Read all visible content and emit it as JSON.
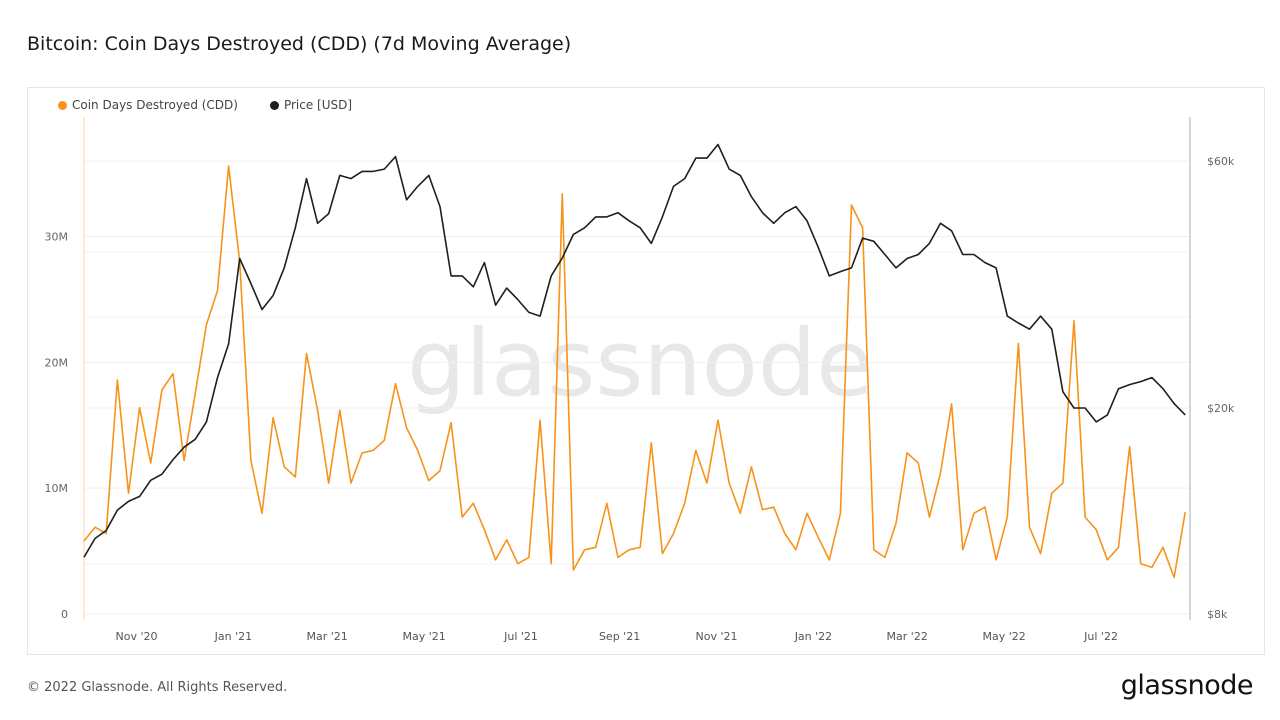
{
  "title": "Bitcoin: Coin Days Destroyed (CDD) (7d Moving Average)",
  "footer": "© 2022 Glassnode. All Rights Reserved.",
  "logo": "glassnode",
  "watermark": "glassnode",
  "chart_data": {
    "type": "line",
    "title": "Bitcoin: Coin Days Destroyed (CDD) (7d Moving Average)",
    "legend_placement": "top-left",
    "grid": true,
    "x": [
      "2020-10-04",
      "2020-10-11",
      "2020-10-18",
      "2020-10-25",
      "2020-11-01",
      "2020-11-08",
      "2020-11-15",
      "2020-11-22",
      "2020-11-29",
      "2020-12-06",
      "2020-12-13",
      "2020-12-20",
      "2020-12-27",
      "2021-01-03",
      "2021-01-10",
      "2021-01-17",
      "2021-01-24",
      "2021-01-31",
      "2021-02-07",
      "2021-02-14",
      "2021-02-21",
      "2021-02-28",
      "2021-03-07",
      "2021-03-14",
      "2021-03-21",
      "2021-03-28",
      "2021-04-04",
      "2021-04-11",
      "2021-04-18",
      "2021-04-25",
      "2021-05-02",
      "2021-05-09",
      "2021-05-16",
      "2021-05-23",
      "2021-05-30",
      "2021-06-06",
      "2021-06-13",
      "2021-06-20",
      "2021-06-27",
      "2021-07-04",
      "2021-07-11",
      "2021-07-18",
      "2021-07-25",
      "2021-08-01",
      "2021-08-08",
      "2021-08-15",
      "2021-08-22",
      "2021-08-29",
      "2021-09-05",
      "2021-09-12",
      "2021-09-19",
      "2021-09-26",
      "2021-10-03",
      "2021-10-10",
      "2021-10-17",
      "2021-10-24",
      "2021-10-31",
      "2021-11-07",
      "2021-11-14",
      "2021-11-21",
      "2021-11-28",
      "2021-12-05",
      "2021-12-12",
      "2021-12-19",
      "2021-12-26",
      "2022-01-02",
      "2022-01-09",
      "2022-01-16",
      "2022-01-23",
      "2022-01-30",
      "2022-02-06",
      "2022-02-13",
      "2022-02-20",
      "2022-02-27",
      "2022-03-06",
      "2022-03-13",
      "2022-03-20",
      "2022-03-27",
      "2022-04-03",
      "2022-04-10",
      "2022-04-17",
      "2022-04-24",
      "2022-05-01",
      "2022-05-08",
      "2022-05-15",
      "2022-05-22",
      "2022-05-29",
      "2022-06-05",
      "2022-06-12",
      "2022-06-19",
      "2022-06-26",
      "2022-07-03",
      "2022-07-10",
      "2022-07-17",
      "2022-07-24",
      "2022-07-31",
      "2022-08-07",
      "2022-08-14",
      "2022-08-21",
      "2022-08-28"
    ],
    "x_ticks": [
      "Nov '20",
      "Jan '21",
      "Mar '21",
      "May '21",
      "Jul '21",
      "Sep '21",
      "Nov '21",
      "Jan '22",
      "Mar '22",
      "May '22",
      "Jul '22"
    ],
    "x_tick_dates": [
      "2020-11-01",
      "2021-01-01",
      "2021-03-01",
      "2021-05-01",
      "2021-07-01",
      "2021-09-01",
      "2021-11-01",
      "2022-01-01",
      "2022-03-01",
      "2022-05-01",
      "2022-07-01"
    ],
    "xlim": [
      "2020-10-04",
      "2022-08-31"
    ],
    "y_left": {
      "ticks": [
        0,
        10000000,
        20000000,
        30000000
      ],
      "tick_labels": [
        "0",
        "10M",
        "20M",
        "30M"
      ],
      "ylim": [
        0,
        39500000
      ],
      "scale": "linear"
    },
    "y_right": {
      "ticks": [
        8000,
        20000,
        60000
      ],
      "tick_labels": [
        "$8k",
        "$20k",
        "$60k"
      ],
      "ylim": [
        8000,
        73000
      ],
      "scale": "log"
    },
    "series": [
      {
        "name": "Coin Days Destroyed (CDD)",
        "axis": "left",
        "color": "#f7931a",
        "values": [
          5.8,
          6.9,
          6.4,
          18.6,
          9.6,
          16.4,
          12.0,
          17.8,
          19.1,
          12.2,
          17.5,
          23.0,
          25.7,
          35.6,
          28.0,
          12.2,
          8.0,
          15.6,
          11.7,
          10.9,
          20.7,
          16.2,
          10.4,
          16.2,
          10.4,
          12.8,
          13.0,
          13.8,
          18.3,
          14.8,
          13.0,
          10.6,
          11.4,
          15.2,
          7.7,
          8.8,
          6.7,
          4.3,
          5.9,
          4.0,
          4.5,
          15.4,
          4.0,
          33.4,
          3.5,
          5.1,
          5.3,
          8.8,
          4.5,
          5.1,
          5.3,
          13.6,
          4.8,
          6.4,
          8.8,
          13.0,
          10.4,
          15.4,
          10.4,
          8.0,
          11.7,
          8.3,
          8.5,
          6.4,
          5.1,
          8.0,
          6.1,
          4.3,
          8.0,
          32.5,
          30.7,
          5.1,
          4.5,
          7.2,
          12.8,
          12.0,
          7.7,
          11.2,
          16.7,
          5.1,
          8.0,
          8.5,
          4.3,
          7.7,
          21.5,
          6.9,
          4.8,
          9.6,
          10.4,
          23.3,
          7.7,
          6.7,
          4.3,
          5.3,
          13.3,
          4.0,
          3.7,
          5.3,
          2.9,
          8.1
        ],
        "unit_multiplier": 1000000
      },
      {
        "name": "Price [USD]",
        "axis": "right",
        "color": "#1f1f1f",
        "values": [
          10300,
          11200,
          11600,
          12700,
          13200,
          13500,
          14500,
          14900,
          15900,
          16800,
          17400,
          18800,
          22900,
          26600,
          38900,
          34800,
          31000,
          33000,
          37300,
          44600,
          55500,
          45500,
          47500,
          56300,
          55500,
          57300,
          57300,
          57900,
          61200,
          50500,
          53600,
          56300,
          49000,
          36000,
          36000,
          34300,
          38200,
          31600,
          34100,
          32400,
          30600,
          30100,
          36000,
          39000,
          43300,
          44600,
          46800,
          46800,
          47700,
          46000,
          44600,
          41600,
          46800,
          53600,
          55500,
          60800,
          60800,
          64600,
          57900,
          56300,
          51200,
          47700,
          45500,
          47700,
          49000,
          46000,
          40900,
          36000,
          36700,
          37300,
          42600,
          42000,
          39600,
          37300,
          38900,
          39600,
          41600,
          45500,
          44000,
          39600,
          39600,
          38200,
          37300,
          30100,
          29200,
          28400,
          30100,
          28400,
          21500,
          20000,
          20000,
          18800,
          19400,
          21800,
          22200,
          22500,
          22900,
          21800,
          20400,
          19400
        ]
      }
    ]
  }
}
